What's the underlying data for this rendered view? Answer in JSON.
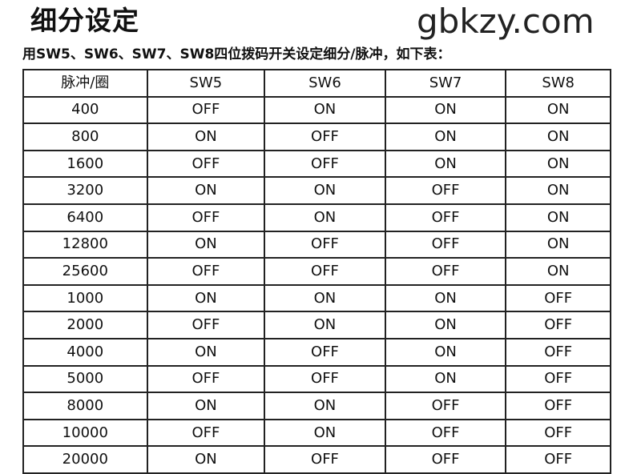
{
  "title": "细分设定",
  "subtitle": "用SW5、SW6、SW7、SW8四位拨码开关设定细分/脉冲，如下表：",
  "table": {
    "headers": [
      "脉冲/圈",
      "SW5",
      "SW6",
      "SW7",
      "SW8"
    ],
    "rows": [
      [
        "400",
        "OFF",
        "ON",
        "ON",
        "ON"
      ],
      [
        "800",
        "ON",
        "OFF",
        "ON",
        "ON"
      ],
      [
        "1600",
        "OFF",
        "OFF",
        "ON",
        "ON"
      ],
      [
        "3200",
        "ON",
        "ON",
        "OFF",
        "ON"
      ],
      [
        "6400",
        "OFF",
        "ON",
        "OFF",
        "ON"
      ],
      [
        "12800",
        "ON",
        "OFF",
        "OFF",
        "ON"
      ],
      [
        "25600",
        "OFF",
        "OFF",
        "OFF",
        "ON"
      ],
      [
        "1000",
        "ON",
        "ON",
        "ON",
        "OFF"
      ],
      [
        "2000",
        "OFF",
        "ON",
        "ON",
        "OFF"
      ],
      [
        "4000",
        "ON",
        "OFF",
        "ON",
        "OFF"
      ],
      [
        "5000",
        "OFF",
        "OFF",
        "ON",
        "OFF"
      ],
      [
        "8000",
        "ON",
        "ON",
        "OFF",
        "OFF"
      ],
      [
        "10000",
        "OFF",
        "ON",
        "OFF",
        "OFF"
      ],
      [
        "20000",
        "ON",
        "OFF",
        "OFF",
        "OFF"
      ]
    ]
  },
  "watermark": "gbkzy.com"
}
